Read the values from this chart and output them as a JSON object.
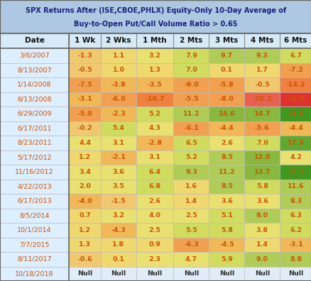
{
  "title_line1": "SPX Returns After (ISE,CBOE,PHLX) Equity-Only 10-Day Average of",
  "title_line2": "Buy-to-Open Put/Call Volume Ratio > 0.65",
  "columns": [
    "Date",
    "1 Wk",
    "2 Wks",
    "1 Mth",
    "2 Mts",
    "3 Mts",
    "4 Mts",
    "6 Mts"
  ],
  "rows": [
    [
      "3/6/2007",
      "-1.3",
      "1.1",
      "3.2",
      "7.9",
      "9.7",
      "9.3",
      "6.7"
    ],
    [
      "8/13/2007",
      "-0.5",
      "1.0",
      "1.3",
      "7.0",
      "0.1",
      "1.7",
      "-7.2"
    ],
    [
      "1/14/2008",
      "-7.5",
      "-3.8",
      "-3.5",
      "-9.0",
      "-5.8",
      "-0.5",
      "-14.2"
    ],
    [
      "6/13/2008",
      "-3.1",
      "-6.0",
      "-10.7",
      "-5.5",
      "-8.0",
      "-26.2",
      "-35.8"
    ],
    [
      "6/29/2009",
      "-5.0",
      "-2.3",
      "5.2",
      "11.2",
      "14.6",
      "14.7",
      "21.6"
    ],
    [
      "6/17/2011",
      "-0.2",
      "5.4",
      "4.3",
      "-6.1",
      "-4.4",
      "-5.6",
      "-4.4"
    ],
    [
      "8/23/2011",
      "4.4",
      "3.1",
      "-2.8",
      "6.5",
      "2.6",
      "7.0",
      "17.3"
    ],
    [
      "5/17/2012",
      "1.2",
      "-2.1",
      "3.1",
      "5.2",
      "8.5",
      "12.0",
      "4.2"
    ],
    [
      "11/16/2012",
      "3.4",
      "3.6",
      "6.4",
      "9.3",
      "11.2",
      "13.7",
      "22.7"
    ],
    [
      "4/22/2013",
      "2.0",
      "3.5",
      "6.8",
      "1.6",
      "8.5",
      "5.8",
      "11.6"
    ],
    [
      "6/17/2013",
      "-4.0",
      "-1.5",
      "2.6",
      "1.4",
      "3.6",
      "3.6",
      "8.3"
    ],
    [
      "8/5/2014",
      "0.7",
      "3.2",
      "4.0",
      "2.5",
      "5.1",
      "8.0",
      "6.3"
    ],
    [
      "10/1/2014",
      "1.2",
      "-4.3",
      "2.5",
      "5.5",
      "5.8",
      "3.8",
      "6.2"
    ],
    [
      "7/7/2015",
      "1.3",
      "1.8",
      "0.9",
      "-6.3",
      "-4.5",
      "1.4",
      "-3.1"
    ],
    [
      "8/11/2017",
      "-0.6",
      "0.1",
      "2.3",
      "4.7",
      "5.9",
      "9.0",
      "8.8"
    ],
    [
      "10/18/2018",
      "Null",
      "Null",
      "Null",
      "Null",
      "Null",
      "Null",
      "Null"
    ]
  ],
  "title_bg": "#adc8e0",
  "header_bg": "#d6eaf8",
  "date_col_bg": "#ddeeff",
  "null_cell_bg": "#e8f4fd",
  "text_color_date": "#cc6600",
  "text_color_val": "#cc6600",
  "text_color_header": "#000000",
  "border_color": "#aaaaaa"
}
